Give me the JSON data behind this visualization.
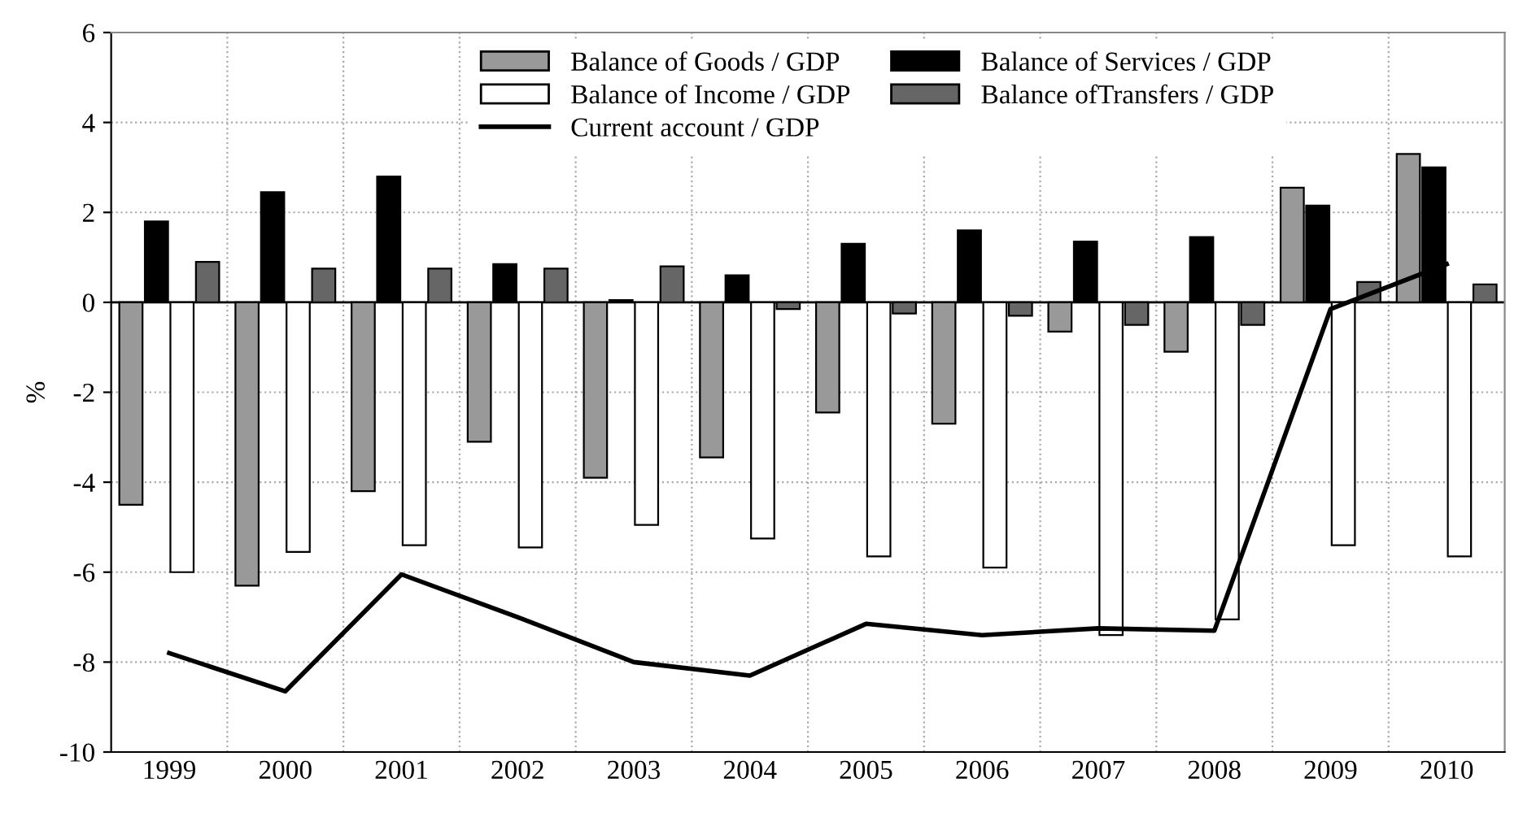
{
  "chart_data": {
    "type": "bar",
    "ylabel": "%",
    "categories": [
      "1999",
      "2000",
      "2001",
      "2002",
      "2003",
      "2004",
      "2005",
      "2006",
      "2007",
      "2008",
      "2009",
      "2010"
    ],
    "series": [
      {
        "name": "Balance of Goods / GDP",
        "color": "#999999",
        "values": [
          -4.5,
          -6.3,
          -4.2,
          -3.1,
          -3.9,
          -3.45,
          -2.45,
          -2.7,
          -0.65,
          -1.1,
          2.55,
          3.3
        ]
      },
      {
        "name": "Balance of Services / GDP",
        "color": "#000000",
        "values": [
          1.8,
          2.45,
          2.8,
          0.85,
          0.05,
          0.6,
          1.3,
          1.6,
          1.35,
          1.45,
          2.15,
          3.0
        ]
      },
      {
        "name": "Balance of Income / GDP",
        "color": "#ffffff",
        "values": [
          -6.0,
          -5.55,
          -5.4,
          -5.45,
          -4.95,
          -5.25,
          -5.65,
          -5.9,
          -7.4,
          -7.05,
          -5.4,
          -5.65
        ]
      },
      {
        "name": "Balance ofTransfers / GDP",
        "color": "#666666",
        "values": [
          0.9,
          0.75,
          0.75,
          0.75,
          0.8,
          -0.15,
          -0.25,
          -0.3,
          -0.5,
          -0.5,
          0.45,
          0.4
        ]
      },
      {
        "name": "Current account / GDP",
        "type": "line",
        "color": "#000000",
        "values": [
          -7.8,
          -8.65,
          -6.05,
          -7.0,
          -8.0,
          -8.3,
          -7.15,
          -7.4,
          -7.25,
          -7.3,
          -0.15,
          0.85
        ]
      }
    ],
    "ylim": [
      -10,
      6
    ],
    "yticks": [
      -10,
      -8,
      -6,
      -4,
      -2,
      0,
      2,
      4,
      6
    ],
    "grid": true,
    "legend": "top",
    "marker": "none",
    "line_style": "solid"
  }
}
